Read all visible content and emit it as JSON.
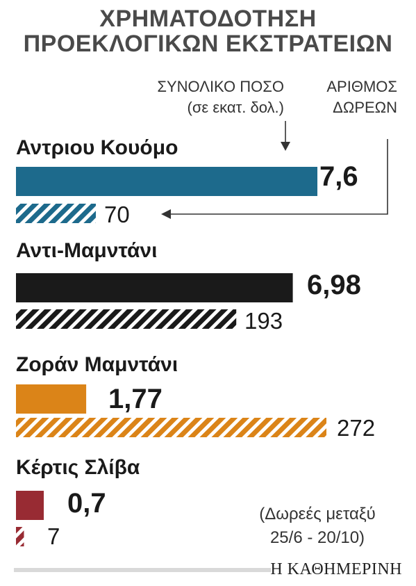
{
  "header": {
    "title_line1": "ΧΡΗΜΑΤΟΔΟΤΗΣΗ",
    "title_line2": "ΠΡΟΕΚΛΟΓΙΚΩΝ ΕΚΣΤΡΑΤΕΙΩΝ",
    "total_label_line1": "ΣΥΝΟΛΙΚΟ ΠΟΣΟ",
    "total_label_line2": "(σε εκατ. δολ.)",
    "donations_label_line1": "ΑΡΙΘΜΟΣ",
    "donations_label_line2": "ΔΩΡΕΩΝ"
  },
  "note": {
    "line1": "(Δωρεές μεταξύ",
    "line2": "25/6 - 20/10)"
  },
  "brand": "Η ΚΑΘΗΜΕΡΙΝΗ",
  "chart_data": {
    "type": "bar",
    "categories": [
      "Αντριου Κουόμο",
      "Αντι-Μαμντάνι",
      "Ζοράν Μαμντάνι",
      "Κέρτις Σλίβα"
    ],
    "series": [
      {
        "name": "ΣΥΝΟΛΙΚΟ ΠΟΣΟ",
        "values": [
          7.6,
          6.98,
          1.77,
          0.7
        ],
        "labels": [
          "7,6",
          "6,98",
          "1,77",
          "0,7"
        ]
      },
      {
        "name": "ΑΡΙΘΜΟΣ ΔΩΡΕΩΝ",
        "values": [
          70,
          193,
          272,
          7
        ],
        "labels": [
          "70",
          "193",
          "272",
          "7"
        ]
      }
    ],
    "colors": [
      "#1d6a8c",
      "#1a1a1a",
      "#db8418",
      "#982b33"
    ],
    "grid": false,
    "legend": "none"
  }
}
